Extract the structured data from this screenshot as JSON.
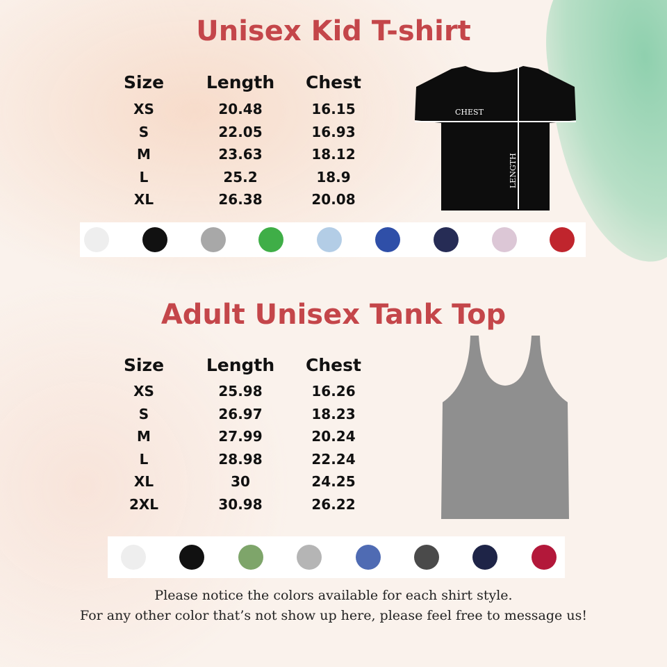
{
  "kid": {
    "title": "Unisex Kid T-shirt",
    "headers": [
      "Size",
      "Length",
      "Chest"
    ],
    "rows": [
      [
        "XS",
        "20.48",
        "16.15"
      ],
      [
        "S",
        "22.05",
        "16.93"
      ],
      [
        "M",
        "23.63",
        "18.12"
      ],
      [
        "L",
        "25.2",
        "18.9"
      ],
      [
        "XL",
        "26.38",
        "20.08"
      ]
    ],
    "diagram": {
      "chest_label": "CHEST",
      "length_label": "LENGTH"
    },
    "colors": [
      "#eeeeee",
      "#111111",
      "#a8a8a8",
      "#3fae47",
      "#b3cde6",
      "#2f4fa8",
      "#262c55",
      "#dcc7d6",
      "#c0252d"
    ]
  },
  "tank": {
    "title": "Adult Unisex Tank Top",
    "headers": [
      "Size",
      "Length",
      "Chest"
    ],
    "rows": [
      [
        "XS",
        "25.98",
        "16.26"
      ],
      [
        "S",
        "26.97",
        "18.23"
      ],
      [
        "M",
        "27.99",
        "20.24"
      ],
      [
        "L",
        "28.98",
        "22.24"
      ],
      [
        "XL",
        "30",
        "24.25"
      ],
      [
        "2XL",
        "30.98",
        "26.22"
      ]
    ],
    "colors": [
      "#eeeeee",
      "#111111",
      "#7ea56a",
      "#b5b5b5",
      "#4f6bb3",
      "#4a4a4a",
      "#1e2447",
      "#b3183a"
    ]
  },
  "footer": {
    "line1": "Please notice the colors available for each shirt style.",
    "line2": "For any other color that’s not show up here, please feel free to message us!"
  }
}
